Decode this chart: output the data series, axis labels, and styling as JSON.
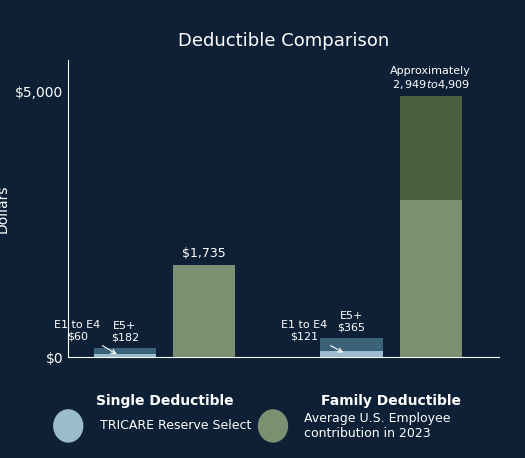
{
  "title": "Deductible Comparison",
  "background_color": "#0d2035",
  "text_color": "#ffffff",
  "ylabel": "Dollars",
  "yticks": [
    0,
    5000
  ],
  "ytick_labels": [
    "$0",
    "$5,000"
  ],
  "groups": [
    "Single Deductible",
    "Family Deductible"
  ],
  "tricare_color_light": "#9bbccc",
  "tricare_color_dark": "#3a6278",
  "employee_color_light": "#7a9070",
  "employee_color_dark": "#4a5e40",
  "bars": {
    "single_tricare_e1e4": 60,
    "single_tricare_e5plus": 182,
    "single_employee": 1735,
    "family_tricare_e1e4": 121,
    "family_tricare_e5plus": 365,
    "family_employee_low": 2949,
    "family_employee_high": 4909
  },
  "annotations": {
    "single_tricare": "E1 to E4\n$60",
    "single_tricare_e5": "E5+\n$182",
    "single_employee": "$1,735",
    "family_tricare": "E1 to E4\n$121",
    "family_tricare_e5": "E5+\n$365",
    "family_employee": "Approximately\n$2,949 to $4,909"
  },
  "legend": {
    "tricare_label": "TRICARE Reserve Select",
    "employee_label": "Average U.S. Employee\ncontribution in 2023"
  },
  "bar_width": 0.55,
  "ylim": [
    0,
    5600
  ],
  "title_fontsize": 13,
  "axis_label_fontsize": 10,
  "tick_fontsize": 10,
  "annotation_fontsize": 8
}
